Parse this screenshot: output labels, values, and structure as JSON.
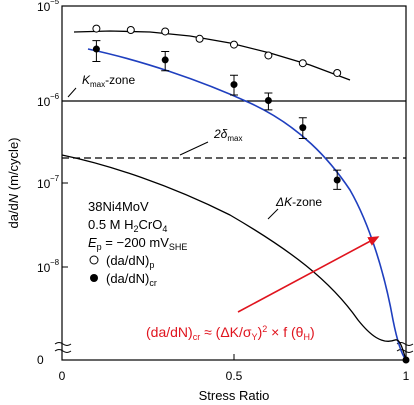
{
  "chart_data": {
    "type": "scatter",
    "xlabel": "Stress Ratio",
    "ylabel": "da/dN (m/cycle)",
    "x_ticks": [
      "0",
      "0.5",
      "1"
    ],
    "y_ticks": [
      "10^-5",
      "10^-6",
      "10^-7",
      "10^-8",
      "0"
    ],
    "y_scale": "log",
    "xlim": [
      0,
      1
    ],
    "ylim": [
      0,
      1e-05
    ],
    "grid": false,
    "series": [
      {
        "name": "(da/dN)p",
        "marker": "open circle",
        "x": [
          0.1,
          0.2,
          0.3,
          0.4,
          0.5,
          0.6,
          0.7,
          0.8
        ],
        "y": [
          5.5e-06,
          5.3e-06,
          5.1e-06,
          4.2e-06,
          3.6e-06,
          2.7e-06,
          2.2e-06,
          1.7e-06
        ]
      },
      {
        "name": "(da/dN)cr",
        "marker": "filled circle with error bars",
        "x": [
          0.1,
          0.3,
          0.5,
          0.6,
          0.7,
          0.8
        ],
        "y": [
          3.2e-06,
          2.4e-06,
          1.25e-06,
          8.2e-07,
          4e-07,
          1e-07
        ],
        "y_low": [
          2.3e-06,
          1.8e-06,
          9.5e-07,
          6.4e-07,
          3e-07,
          7.8e-08
        ],
        "y_high": [
          4e-06,
          3e-06,
          1.6e-06,
          1e-06,
          5.2e-07,
          1.3e-07
        ]
      }
    ],
    "reference_lines": [
      {
        "label": "K",
        "label_sub": "max",
        "label_suffix": "-zone",
        "y": 9.5e-07,
        "style": "solid"
      },
      {
        "label": "2δ",
        "label_sub": "max",
        "y": 2e-07,
        "style": "dashed"
      }
    ],
    "curves": [
      {
        "label": "ΔK-zone",
        "color": "#000000"
      },
      {
        "color": "#1f3fbf"
      }
    ],
    "annotations": {
      "material": "38Ni4MoV",
      "solution_pre": "0.5 M H",
      "solution_sub1": "2",
      "solution_mid": "CrO",
      "solution_sub2": "4",
      "potential_label": "E",
      "potential_label_sub": "p",
      "potential_value": " = −200 mV",
      "potential_sub": "SHE",
      "legend_open": "(da/dN)",
      "legend_open_sub": "p",
      "legend_filled": "(da/dN)",
      "legend_filled_sub": "cr",
      "equation_color": "#e0141e",
      "equation_lhs": "(da/dN)",
      "equation_lhs_sub": "cr",
      "equation_mid": " ≈ (ΔK/σ",
      "equation_mid_sub": "Y",
      "equation_tail": ")",
      "equation_sup": "2",
      "equation_end": " × f (θ",
      "equation_end_sub": "H",
      "equation_close": ")"
    }
  }
}
